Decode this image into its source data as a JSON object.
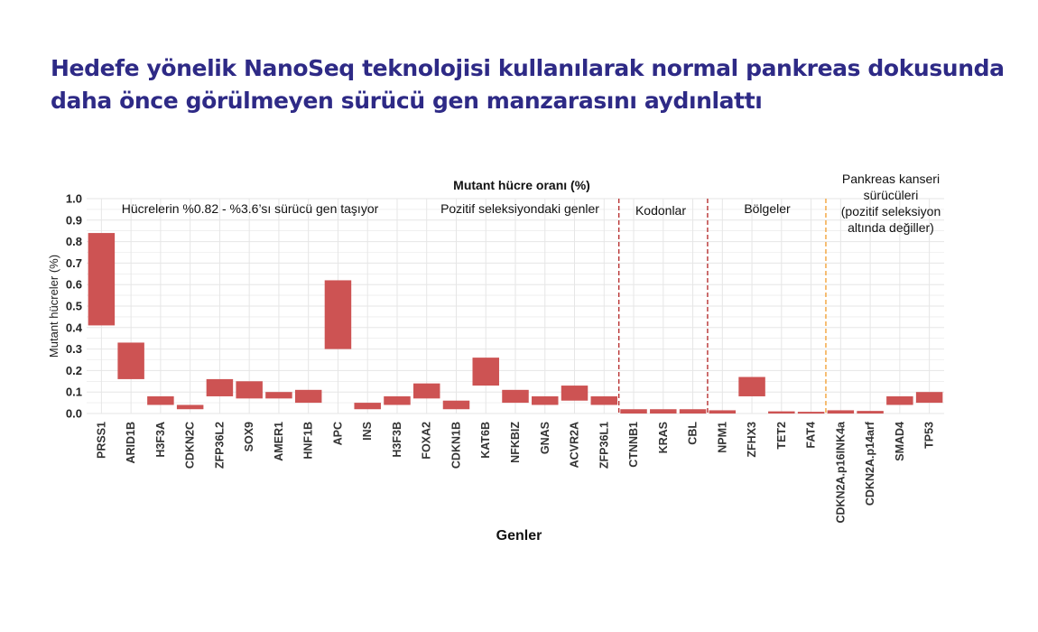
{
  "headline": {
    "line1": "Hedefe yönelik NanoSeq teknolojisi kullanılarak normal pankreas dokusunda",
    "line2": "daha önce görülmeyen sürücü gen manzarasını aydınlattı"
  },
  "colors": {
    "headline": "#2e2a86",
    "bar": "#cd5353",
    "grid": "#e6e6e6",
    "divider_red": "#b83232",
    "divider_orange": "#f2a33a"
  },
  "chart_data": {
    "type": "bar",
    "subtype": "floating range (min–max)",
    "title": "Mutant hücre oranı (%)",
    "xlabel": "Genler",
    "ylabel": "Mutant hücreler (%)",
    "ylim": [
      0,
      1.0
    ],
    "yticks": [
      "0.0",
      "0.1",
      "0.2",
      "0.3",
      "0.4",
      "0.5",
      "0.6",
      "0.7",
      "0.8",
      "0.9",
      "1.0"
    ],
    "grid": true,
    "legend": "none",
    "categories": [
      "PRSS1",
      "ARID1B",
      "H3F3A",
      "CDKN2C",
      "ZFP36L2",
      "SOX9",
      "AMER1",
      "HNF1B",
      "APC",
      "INS",
      "H3F3B",
      "FOXA2",
      "CDKN1B",
      "KAT6B",
      "NFKBIZ",
      "GNAS",
      "ACVR2A",
      "ZFP36L1",
      "CTNNB1",
      "KRAS",
      "CBL",
      "NPM1",
      "ZFHX3",
      "TET2",
      "FAT4",
      "CDKN2A.p16INK4a",
      "CDKN2A.p14arf",
      "SMAD4",
      "TP53"
    ],
    "ranges": [
      [
        0.41,
        0.84
      ],
      [
        0.16,
        0.33
      ],
      [
        0.04,
        0.08
      ],
      [
        0.02,
        0.04
      ],
      [
        0.08,
        0.16
      ],
      [
        0.07,
        0.15
      ],
      [
        0.07,
        0.1
      ],
      [
        0.05,
        0.11
      ],
      [
        0.3,
        0.62
      ],
      [
        0.02,
        0.05
      ],
      [
        0.04,
        0.08
      ],
      [
        0.07,
        0.14
      ],
      [
        0.02,
        0.06
      ],
      [
        0.13,
        0.26
      ],
      [
        0.05,
        0.11
      ],
      [
        0.04,
        0.08
      ],
      [
        0.06,
        0.13
      ],
      [
        0.04,
        0.08
      ],
      [
        0.0,
        0.02
      ],
      [
        0.0,
        0.02
      ],
      [
        0.0,
        0.02
      ],
      [
        0.0,
        0.015
      ],
      [
        0.08,
        0.17
      ],
      [
        0.0,
        0.01
      ],
      [
        0.0,
        0.008
      ],
      [
        0.0,
        0.015
      ],
      [
        0.0,
        0.012
      ],
      [
        0.04,
        0.08
      ],
      [
        0.05,
        0.1
      ]
    ],
    "sections": [
      "Hücrelerin %0.82 - %3.6’sı sürücü gen taşıyor",
      "Pozitif seleksiyondaki genler",
      "Kodonlar",
      "Bölgeler"
    ],
    "cancer_note": [
      "Pankreas kanseri",
      "sürücüleri",
      "(pozitif seleksiyon",
      "altında değiller)"
    ],
    "dividers": [
      {
        "after_category": 17,
        "style": "red"
      },
      {
        "after_category": 20,
        "style": "red"
      },
      {
        "after_category": 24,
        "style": "orange"
      }
    ]
  }
}
